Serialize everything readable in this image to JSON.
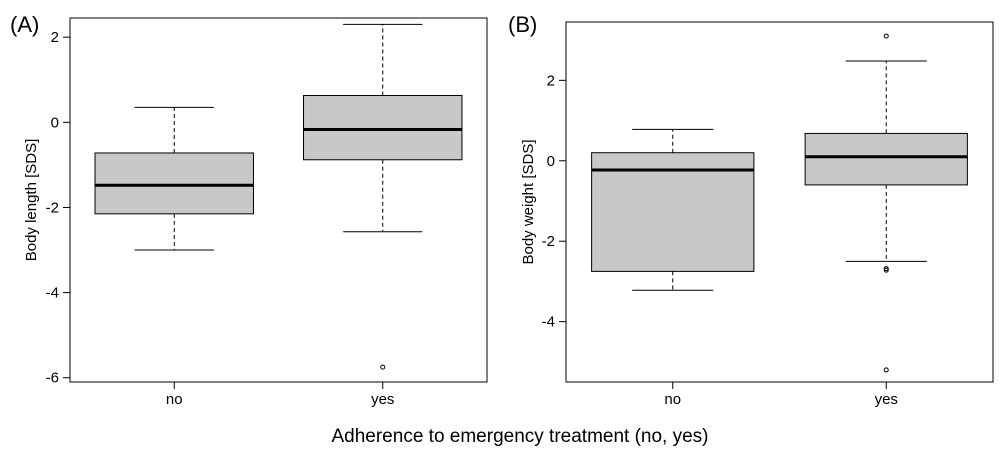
{
  "shared_xlabel": "Adherence to emergency treatment (no, yes)",
  "chart_data": [
    {
      "type": "boxplot",
      "panel_label": "(A)",
      "ylabel": "Body length [SDS]",
      "categories": [
        "no",
        "yes"
      ],
      "yticks": [
        -6,
        -4,
        -2,
        0,
        2
      ],
      "ylim": [
        -6.1,
        2.45
      ],
      "box_color": "#c8c8c8",
      "boxes": [
        {
          "category": "no",
          "whisker_low": -3.0,
          "q1": -2.15,
          "median": -1.48,
          "q3": -0.72,
          "whisker_high": 0.35,
          "outliers": []
        },
        {
          "category": "yes",
          "whisker_low": -2.57,
          "q1": -0.88,
          "median": -0.17,
          "q3": 0.63,
          "whisker_high": 2.3,
          "outliers": [
            -5.75
          ]
        }
      ]
    },
    {
      "type": "boxplot",
      "panel_label": "(B)",
      "ylabel": "Body weight [SDS]",
      "categories": [
        "no",
        "yes"
      ],
      "yticks": [
        -4,
        -2,
        0,
        2
      ],
      "ylim": [
        -5.5,
        3.45
      ],
      "box_color": "#c8c8c8",
      "boxes": [
        {
          "category": "no",
          "whisker_low": -3.22,
          "q1": -2.75,
          "median": -0.23,
          "q3": 0.2,
          "whisker_high": 0.78,
          "outliers": []
        },
        {
          "category": "yes",
          "whisker_low": -2.5,
          "q1": -0.6,
          "median": 0.1,
          "q3": 0.68,
          "whisker_high": 2.48,
          "outliers": [
            3.1,
            -2.68,
            -2.72,
            -5.2
          ]
        }
      ]
    }
  ]
}
